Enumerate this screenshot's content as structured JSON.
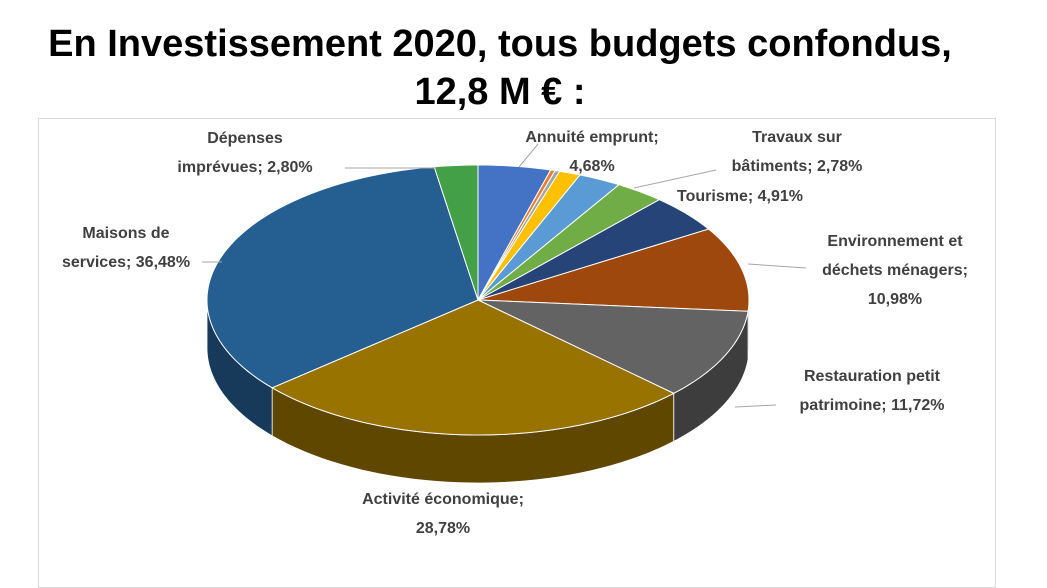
{
  "title": {
    "line1": "En Investissement 2020, tous budgets confondus,",
    "line2": "12,8 M € :"
  },
  "chart_data": {
    "type": "pie",
    "title": "",
    "slices": [
      {
        "name": "Annuité emprunt",
        "value": 4.68,
        "label": [
          "Annuité emprunt;",
          "4,68%"
        ],
        "color": "#4472C4"
      },
      {
        "name": "",
        "value": 0.3,
        "label": [],
        "color": "#ED7D31"
      },
      {
        "name": "",
        "value": 0.3,
        "label": [],
        "color": "#A5A5A5"
      },
      {
        "name": "",
        "value": 1.37,
        "label": [],
        "color": "#FFC000"
      },
      {
        "name": "Travaux sur bâtiments",
        "value": 2.78,
        "label": [
          "Travaux sur",
          "bâtiments; 2,78%"
        ],
        "color": "#5B9BD5"
      },
      {
        "name": "",
        "value": 3.2,
        "label": [],
        "color": "#70AD47"
      },
      {
        "name": "Tourisme",
        "value": 4.91,
        "label": [
          "Tourisme; 4,91%"
        ],
        "color": "#264478"
      },
      {
        "name": "Environnement et déchets ménagers",
        "value": 10.98,
        "label": [
          "Environnement et",
          "déchets ménagers;",
          "10,98%"
        ],
        "color": "#9E480E"
      },
      {
        "name": "Restauration petit patrimoine",
        "value": 11.72,
        "label": [
          "Restauration petit",
          "patrimoine; 11,72%"
        ],
        "color": "#636363"
      },
      {
        "name": "Activité économique",
        "value": 28.78,
        "label": [
          "Activité économique;",
          "28,78%"
        ],
        "color": "#997300"
      },
      {
        "name": "Maisons de services",
        "value": 36.48,
        "label": [
          "Maisons de",
          "services; 36,48%"
        ],
        "color": "#255E91"
      },
      {
        "name": "Dépenses imprévues",
        "value": 2.8,
        "label": [
          "Dépenses",
          "imprévues; 2,80%"
        ],
        "color": "#43A047"
      }
    ],
    "style": "3d-pie",
    "start_angle": "top, clockwise"
  }
}
